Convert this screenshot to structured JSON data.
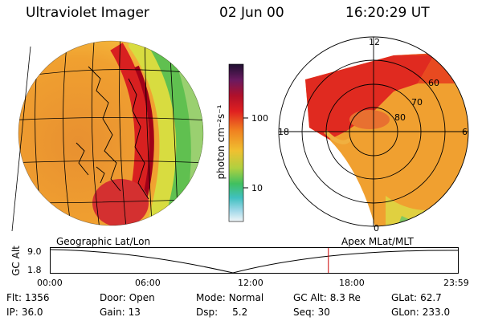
{
  "header": {
    "title": "Ultraviolet Imager",
    "date": "02 Jun 00",
    "time": "16:20:29 UT"
  },
  "colorbar": {
    "unit_label": "photon cm⁻²s⁻¹",
    "ticks": [
      "100",
      "10"
    ]
  },
  "left_map": {
    "caption": "Geographic Lat/Lon"
  },
  "right_map": {
    "caption": "Apex MLat/MLT",
    "mlt_labels": [
      "12",
      "18",
      "6",
      "0"
    ],
    "lat_labels": [
      "60",
      "70",
      "80"
    ]
  },
  "timeline": {
    "axis_label": "GC Alt",
    "y_ticks": [
      "9.0",
      "1.8"
    ],
    "x_ticks": [
      "00:00",
      "06:00",
      "12:00",
      "18:00",
      "23:59"
    ],
    "current_time_fraction": 0.682
  },
  "info": {
    "flt_label": "Flt:",
    "flt_value": "1356",
    "ip_label": "IP:",
    "ip_value": "36.0",
    "door_label": "Door:",
    "door_value": "Open",
    "gain_label": "Gain:",
    "gain_value": "13",
    "mode_label": "Mode:",
    "mode_value": "Normal",
    "dsp_label": "Dsp:",
    "dsp_value": "5.2",
    "gcalt_label": "GC Alt:",
    "gcalt_value": "8.3 Re",
    "seq_label": "Seq:",
    "seq_value": "30",
    "glat_label": "GLat:",
    "glat_value": "62.7",
    "glon_label": "GLon:",
    "glon_value": "233.0"
  },
  "colors": {
    "marker": "#cc0000",
    "bar_top": "#2b1d3a",
    "bar_bottom": "#e8f4f6"
  }
}
